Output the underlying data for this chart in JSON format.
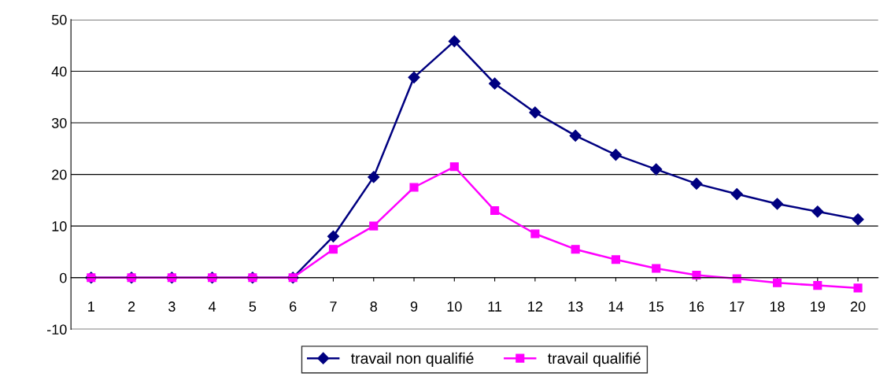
{
  "chart_data": {
    "type": "line",
    "categories": [
      "1",
      "2",
      "3",
      "4",
      "5",
      "6",
      "7",
      "8",
      "9",
      "10",
      "11",
      "12",
      "13",
      "14",
      "15",
      "16",
      "17",
      "18",
      "19",
      "20"
    ],
    "series": [
      {
        "name": "travail non qualifié",
        "color": "#000080",
        "marker": "diamond",
        "values": [
          0,
          0,
          0,
          0,
          0,
          0,
          8,
          19.5,
          38.8,
          45.8,
          37.6,
          32,
          27.5,
          23.8,
          21,
          18.2,
          16.2,
          14.3,
          12.8,
          11.3
        ]
      },
      {
        "name": "travail qualifié",
        "color": "#ff00ff",
        "marker": "square",
        "values": [
          0,
          0,
          0,
          0,
          0,
          0,
          5.5,
          10,
          17.5,
          21.5,
          13,
          8.5,
          5.5,
          3.5,
          1.8,
          0.5,
          -0.2,
          -1,
          -1.5,
          -2
        ]
      }
    ],
    "ylim": [
      -10,
      50
    ],
    "yticks": [
      -10,
      0,
      10,
      20,
      30,
      40,
      50
    ],
    "grid": "y",
    "legend": "bottom",
    "line_style": "solid"
  }
}
